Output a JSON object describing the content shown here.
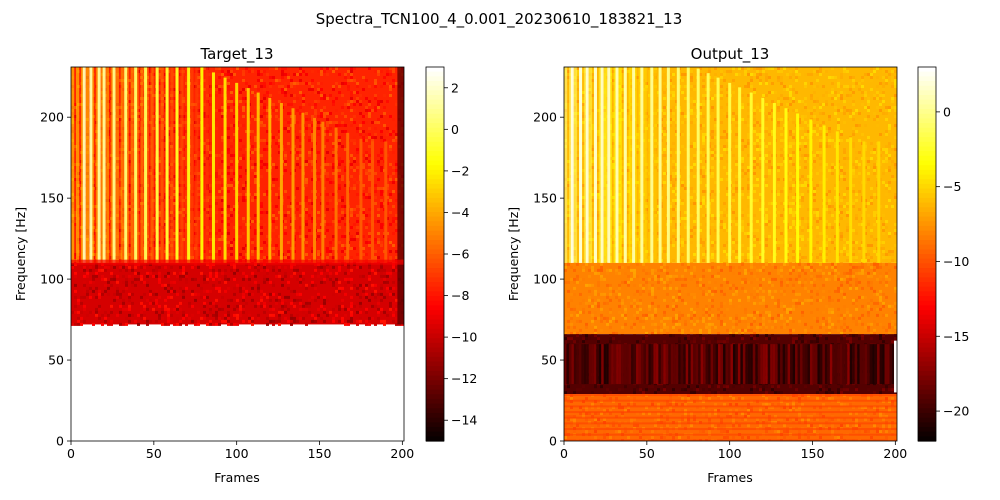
{
  "figure": {
    "suptitle": "Spectra_TCN100_4_0.001_20230610_183821_13"
  },
  "chart_data": [
    {
      "type": "heatmap",
      "title": "Target_13",
      "xlabel": "Frames",
      "ylabel": "Frequency [Hz]",
      "xlim": [
        0,
        201
      ],
      "ylim": [
        0,
        231
      ],
      "x_ticks": [
        "0",
        "50",
        "100",
        "150",
        "200"
      ],
      "y_ticks": [
        "0",
        "50",
        "100",
        "150",
        "200"
      ],
      "x_tick_values": [
        0,
        50,
        100,
        150,
        200
      ],
      "y_tick_values": [
        0,
        50,
        100,
        150,
        200
      ],
      "colormap": "hot",
      "colorbar": {
        "range": [
          -15,
          3
        ],
        "ticks": [
          "2",
          "0",
          "−2",
          "−4",
          "−6",
          "−8",
          "−10",
          "−12",
          "−14"
        ],
        "tick_values": [
          2,
          0,
          -2,
          -4,
          -6,
          -8,
          -10,
          -12,
          -14
        ]
      },
      "regions": [
        {
          "freq_range": [
            110,
            231
          ],
          "level": -7.5,
          "description": "harmonic band"
        },
        {
          "freq_range": [
            72,
            110
          ],
          "level": -9.5,
          "description": "low band"
        },
        {
          "freq_range": [
            0,
            72
          ],
          "level": null,
          "description": "no data (blank)"
        }
      ],
      "harmonic_frames": [
        8,
        12,
        17,
        20,
        26,
        33,
        39,
        45,
        52,
        58,
        64,
        71,
        79,
        86,
        93,
        100,
        107,
        113,
        120,
        127,
        134,
        140,
        147,
        152,
        160,
        167,
        175,
        182,
        190
      ]
    },
    {
      "type": "heatmap",
      "title": "Output_13",
      "xlabel": "Frames",
      "ylabel": "Frequency [Hz]",
      "xlim": [
        0,
        201
      ],
      "ylim": [
        0,
        231
      ],
      "x_ticks": [
        "0",
        "50",
        "100",
        "150",
        "200"
      ],
      "y_ticks": [
        "0",
        "50",
        "100",
        "150",
        "200"
      ],
      "x_tick_values": [
        0,
        50,
        100,
        150,
        200
      ],
      "y_tick_values": [
        0,
        50,
        100,
        150,
        200
      ],
      "colormap": "hot",
      "colorbar": {
        "range": [
          -22,
          3
        ],
        "ticks": [
          "0",
          "−5",
          "−10",
          "−15",
          "−20"
        ],
        "tick_values": [
          0,
          -5,
          -10,
          -15,
          -20
        ]
      },
      "regions": [
        {
          "freq_range": [
            110,
            231
          ],
          "level": -6,
          "description": "harmonic band"
        },
        {
          "freq_range": [
            66,
            110
          ],
          "level": -8,
          "description": "mid band"
        },
        {
          "freq_range": [
            29,
            66
          ],
          "level": -19,
          "description": "dark band"
        },
        {
          "freq_range": [
            0,
            29
          ],
          "level": -9,
          "description": "low striped band"
        }
      ],
      "harmonic_frames": [
        5,
        10,
        14,
        19,
        23,
        27,
        32,
        37,
        42,
        47,
        53,
        58,
        63,
        69,
        75,
        81,
        87,
        93,
        100,
        106,
        113,
        120,
        127,
        134,
        141,
        149,
        157,
        165,
        173,
        181,
        190
      ]
    }
  ]
}
